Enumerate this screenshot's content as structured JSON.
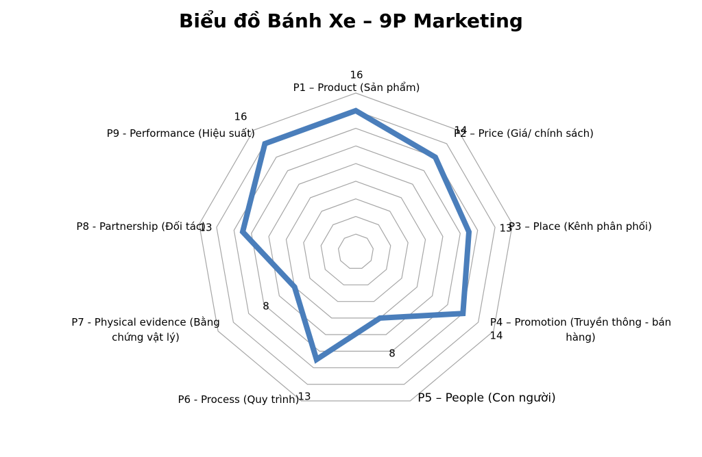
{
  "chart_data": {
    "type": "radar",
    "title": "Biểu đồ Bánh Xe – 9P Marketing",
    "categories": [
      "P1 – Product (Sản phẩm)",
      "P2 – Price (Giá/ chính sách)",
      "P3 – Place (Kênh phân phối)",
      "P4 – Promotion (Truyền thông - bán hàng)",
      "P5 – People (Con người)",
      "P6 - Process (Quy trình)",
      "P7 - Physical evidence (Bằng chứng vật lý)",
      "P8 - Partnership (Đối tác)",
      "P9 - Performance (Hiệu suất)"
    ],
    "series": [
      {
        "color": "#4a7ebb",
        "values": [
          16,
          14,
          13,
          14,
          8,
          13,
          8,
          13,
          16
        ]
      }
    ],
    "ylim": [
      0,
      18
    ],
    "yticks": [
      0,
      2,
      4,
      6,
      8,
      10,
      12,
      14,
      16,
      18
    ],
    "grid": true
  }
}
